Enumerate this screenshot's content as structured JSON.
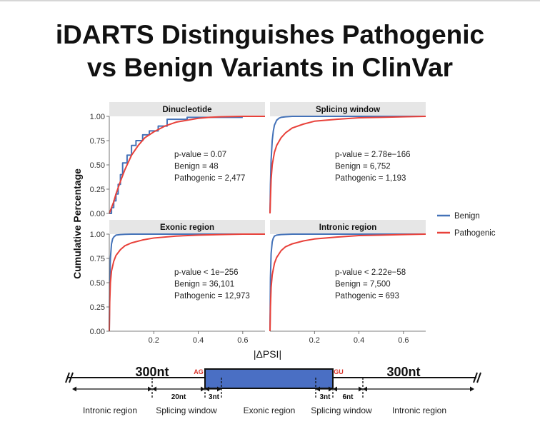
{
  "slide": {
    "title_line1": "iDARTS Distinguishes Pathogenic",
    "title_line2": "vs Benign Variants in ClinVar"
  },
  "chart_data": {
    "type": "line",
    "layout": "2x2 facet grid, shared axes",
    "xlabel": "|ΔPSI|",
    "ylabel": "Cumulative Percentage",
    "xlim": [
      0,
      0.7
    ],
    "ylim": [
      0,
      1
    ],
    "x_ticks": [
      "0.2",
      "0.4",
      "0.6"
    ],
    "y_ticks": [
      "0.00",
      "0.25",
      "0.50",
      "0.75",
      "1.00"
    ],
    "grid": false,
    "legend_position": "right",
    "legend": [
      {
        "name": "Benign",
        "color": "#4472b8"
      },
      {
        "name": "Pathogenic",
        "color": "#e8413a"
      }
    ],
    "panels": [
      {
        "title": "Dinucleotide",
        "stats": [
          "p-value = 0.07",
          "Benign = 48",
          "Pathogenic = 2,477"
        ],
        "series": [
          {
            "name": "Benign",
            "step": true,
            "x": [
              0.0,
              0.01,
              0.01,
              0.02,
              0.02,
              0.03,
              0.03,
              0.04,
              0.04,
              0.05,
              0.05,
              0.06,
              0.06,
              0.08,
              0.08,
              0.1,
              0.1,
              0.12,
              0.12,
              0.15,
              0.15,
              0.18,
              0.18,
              0.22,
              0.22,
              0.26,
              0.26,
              0.35,
              0.35,
              0.6
            ],
            "y": [
              0.0,
              0.0,
              0.06,
              0.06,
              0.13,
              0.13,
              0.2,
              0.2,
              0.3,
              0.3,
              0.4,
              0.4,
              0.52,
              0.52,
              0.6,
              0.6,
              0.7,
              0.7,
              0.75,
              0.75,
              0.81,
              0.81,
              0.85,
              0.85,
              0.9,
              0.9,
              0.97,
              0.97,
              0.99,
              0.99
            ]
          },
          {
            "name": "Pathogenic",
            "step": false,
            "x": [
              0.0,
              0.01,
              0.02,
              0.03,
              0.05,
              0.07,
              0.1,
              0.13,
              0.16,
              0.2,
              0.25,
              0.3,
              0.35,
              0.4,
              0.45,
              0.5,
              0.6,
              0.7
            ],
            "y": [
              0.0,
              0.06,
              0.12,
              0.2,
              0.33,
              0.45,
              0.6,
              0.7,
              0.78,
              0.84,
              0.9,
              0.94,
              0.96,
              0.98,
              0.99,
              0.995,
              1.0,
              1.0
            ]
          }
        ]
      },
      {
        "title": "Splicing window",
        "stats": [
          "p-value = 2.78e−166",
          "Benign = 6,752",
          "Pathogenic = 1,193"
        ],
        "series": [
          {
            "name": "Benign",
            "step": false,
            "x": [
              0.0,
              0.002,
              0.005,
              0.01,
              0.015,
              0.02,
              0.03,
              0.04,
              0.05,
              0.07,
              0.1,
              0.7
            ],
            "y": [
              0.0,
              0.3,
              0.55,
              0.75,
              0.85,
              0.91,
              0.96,
              0.98,
              0.99,
              0.995,
              1.0,
              1.0
            ]
          },
          {
            "name": "Pathogenic",
            "step": false,
            "x": [
              0.0,
              0.002,
              0.005,
              0.01,
              0.02,
              0.03,
              0.05,
              0.07,
              0.1,
              0.15,
              0.2,
              0.3,
              0.4,
              0.5,
              0.6,
              0.7
            ],
            "y": [
              0.0,
              0.15,
              0.35,
              0.5,
              0.63,
              0.7,
              0.78,
              0.83,
              0.88,
              0.92,
              0.95,
              0.97,
              0.985,
              0.99,
              0.995,
              1.0
            ]
          }
        ]
      },
      {
        "title": "Exonic region",
        "stats": [
          "p-value < 1e−256",
          "Benign = 36,101",
          "Pathogenic = 12,973"
        ],
        "series": [
          {
            "name": "Benign",
            "step": false,
            "x": [
              0.0,
              0.002,
              0.005,
              0.01,
              0.015,
              0.02,
              0.03,
              0.05,
              0.07,
              0.1,
              0.7
            ],
            "y": [
              0.0,
              0.5,
              0.75,
              0.9,
              0.95,
              0.97,
              0.99,
              0.995,
              0.998,
              1.0,
              1.0
            ]
          },
          {
            "name": "Pathogenic",
            "step": false,
            "x": [
              0.0,
              0.002,
              0.005,
              0.01,
              0.02,
              0.03,
              0.05,
              0.07,
              0.1,
              0.15,
              0.2,
              0.3,
              0.4,
              0.5,
              0.6,
              0.7
            ],
            "y": [
              0.0,
              0.3,
              0.5,
              0.62,
              0.72,
              0.78,
              0.84,
              0.88,
              0.91,
              0.94,
              0.96,
              0.98,
              0.99,
              0.995,
              1.0,
              1.0
            ]
          }
        ]
      },
      {
        "title": "Intronic region",
        "stats": [
          "p-value < 2.22e−58",
          "Benign = 7,500",
          "Pathogenic = 693"
        ],
        "series": [
          {
            "name": "Benign",
            "step": false,
            "x": [
              0.0,
              0.002,
              0.005,
              0.01,
              0.015,
              0.02,
              0.03,
              0.05,
              0.1,
              0.7
            ],
            "y": [
              0.0,
              0.55,
              0.8,
              0.92,
              0.96,
              0.98,
              0.99,
              0.995,
              1.0,
              1.0
            ]
          },
          {
            "name": "Pathogenic",
            "step": false,
            "x": [
              0.0,
              0.002,
              0.005,
              0.01,
              0.02,
              0.03,
              0.05,
              0.07,
              0.1,
              0.15,
              0.2,
              0.3,
              0.4,
              0.5,
              0.6,
              0.7
            ],
            "y": [
              0.0,
              0.25,
              0.45,
              0.58,
              0.7,
              0.76,
              0.83,
              0.87,
              0.9,
              0.93,
              0.95,
              0.97,
              0.985,
              0.99,
              0.995,
              1.0
            ]
          }
        ]
      }
    ]
  },
  "schematic": {
    "left_flank": "300nt",
    "right_flank": "300nt",
    "acceptor": "AG",
    "donor": "GU",
    "left_window": "20nt",
    "left_exon_offset": "3nt",
    "right_exon_offset": "3nt",
    "right_window": "6nt",
    "region_labels": [
      "Intronic region",
      "Splicing window",
      "Exonic region",
      "Splicing window",
      "Intronic region"
    ],
    "exon_color": "#4a6fc4",
    "site_color": "#d9342b"
  }
}
